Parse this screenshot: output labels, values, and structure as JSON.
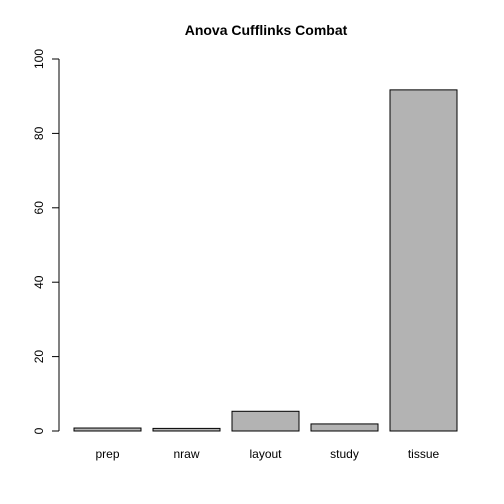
{
  "chart_data": {
    "type": "bar",
    "title": "Anova Cufflinks Combat",
    "xlabel": "",
    "ylabel": "",
    "categories": [
      "prep",
      "nraw",
      "layout",
      "study",
      "tissue"
    ],
    "values": [
      0.8,
      0.7,
      5.3,
      1.9,
      91.7
    ],
    "ylim": [
      0,
      100
    ],
    "yticks": [
      0,
      20,
      40,
      60,
      80,
      100
    ],
    "grid": false,
    "legend": "none",
    "bar_color": "#b3b3b3",
    "border_color": "#000000"
  }
}
